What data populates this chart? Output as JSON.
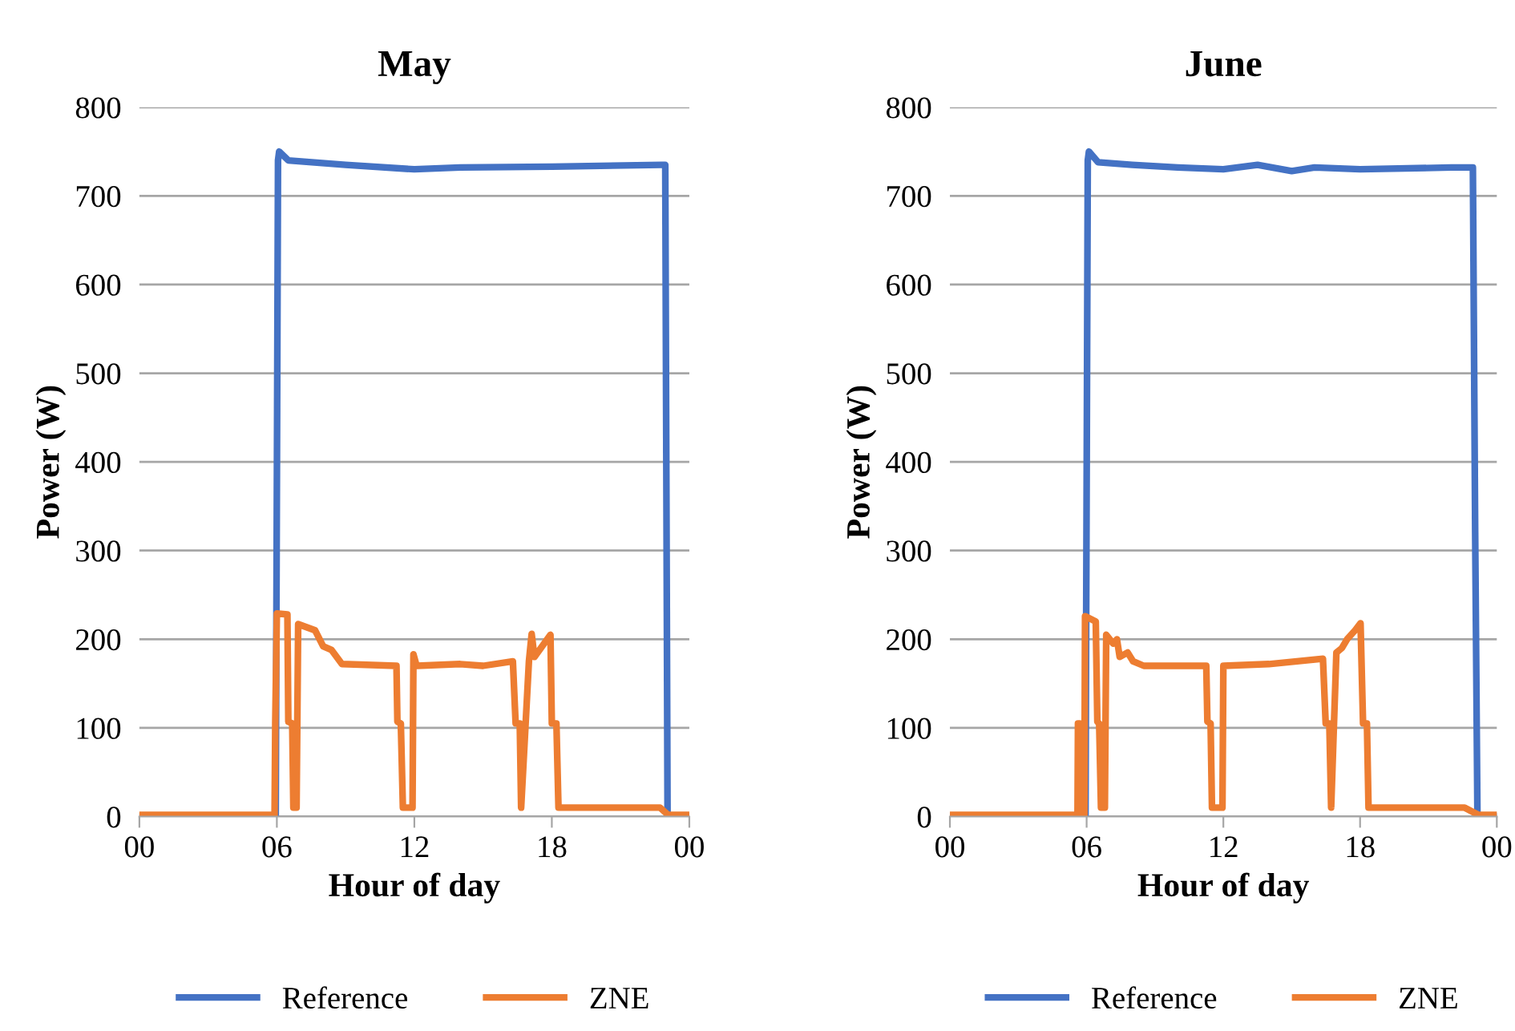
{
  "chart_data": [
    {
      "type": "line",
      "title": "May",
      "xlabel": "Hour of day",
      "ylabel": "Power (W)",
      "xlim": [
        0,
        24
      ],
      "ylim": [
        0,
        800
      ],
      "xticks": [
        {
          "value": 0,
          "label": "00"
        },
        {
          "value": 6,
          "label": "06"
        },
        {
          "value": 12,
          "label": "12"
        },
        {
          "value": 18,
          "label": "18"
        },
        {
          "value": 24,
          "label": "00"
        }
      ],
      "yticks": [
        0,
        100,
        200,
        300,
        400,
        500,
        600,
        700,
        800
      ],
      "grid": "y",
      "legend": "bottom",
      "marker": "none",
      "line_style": "solid",
      "series": [
        {
          "name": "Reference",
          "color": "#4472c4",
          "x": [
            0,
            5.95,
            6.05,
            6.1,
            6.5,
            9,
            12,
            14,
            18,
            22.8,
            22.95,
            23.05,
            24
          ],
          "values": [
            0,
            0,
            740,
            750,
            740,
            735,
            730,
            732,
            733,
            735,
            735,
            0,
            0
          ]
        },
        {
          "name": "ZNE",
          "color": "#ed7d31",
          "x": [
            0,
            5.9,
            5.93,
            6.0,
            6.46,
            6.5,
            6.67,
            6.72,
            6.86,
            6.93,
            7.67,
            8.02,
            8.38,
            8.84,
            11.22,
            11.26,
            11.41,
            11.5,
            11.92,
            11.96,
            12.1,
            14,
            15,
            16.3,
            16.42,
            16.6,
            16.66,
            17.0,
            17.12,
            17.24,
            17.94,
            18.0,
            18.2,
            18.29,
            22.72,
            23.07,
            24
          ],
          "values": [
            2,
            2,
            105,
            229,
            228,
            107,
            105,
            10,
            10,
            217,
            210,
            192,
            188,
            172,
            170,
            107,
            105,
            10,
            10,
            183,
            170,
            172,
            170,
            175,
            105,
            105,
            10,
            175,
            206,
            180,
            205,
            105,
            105,
            10,
            10,
            2,
            2
          ]
        }
      ]
    },
    {
      "type": "line",
      "title": "June",
      "xlabel": "Hour of day",
      "ylabel": "Power (W)",
      "xlim": [
        0,
        24
      ],
      "ylim": [
        0,
        800
      ],
      "xticks": [
        {
          "value": 0,
          "label": "00"
        },
        {
          "value": 6,
          "label": "06"
        },
        {
          "value": 12,
          "label": "12"
        },
        {
          "value": 18,
          "label": "18"
        },
        {
          "value": 24,
          "label": "00"
        }
      ],
      "yticks": [
        0,
        100,
        200,
        300,
        400,
        500,
        600,
        700,
        800
      ],
      "grid": "y",
      "legend": "bottom",
      "marker": "none",
      "line_style": "solid",
      "series": [
        {
          "name": "Reference",
          "color": "#4472c4",
          "x": [
            0,
            5.95,
            6.05,
            6.1,
            6.5,
            8,
            10,
            12,
            13.5,
            15,
            16,
            18,
            22,
            22.95,
            23.05,
            23.15,
            24
          ],
          "values": [
            0,
            0,
            740,
            750,
            738,
            735,
            732,
            730,
            735,
            728,
            732,
            730,
            732,
            732,
            320,
            0,
            0
          ]
        },
        {
          "name": "ZNE",
          "color": "#ed7d31",
          "x": [
            0,
            5.6,
            5.62,
            5.7,
            5.75,
            5.9,
            5.93,
            6.4,
            6.47,
            6.55,
            6.63,
            6.8,
            6.86,
            7.17,
            7.33,
            7.45,
            7.8,
            8.04,
            8.51,
            11.25,
            11.3,
            11.44,
            11.5,
            11.96,
            12.0,
            14,
            16.37,
            16.49,
            16.65,
            16.73,
            16.96,
            17.2,
            17.43,
            17.78,
            18.02,
            18.13,
            18.3,
            18.37,
            22.59,
            23.18,
            24
          ],
          "values": [
            2,
            2,
            105,
            105,
            2,
            2,
            226,
            220,
            107,
            105,
            10,
            10,
            205,
            195,
            200,
            180,
            185,
            175,
            170,
            170,
            107,
            105,
            10,
            10,
            170,
            172,
            178,
            105,
            105,
            10,
            185,
            190,
            200,
            210,
            218,
            105,
            105,
            10,
            10,
            2,
            2
          ]
        }
      ]
    }
  ]
}
